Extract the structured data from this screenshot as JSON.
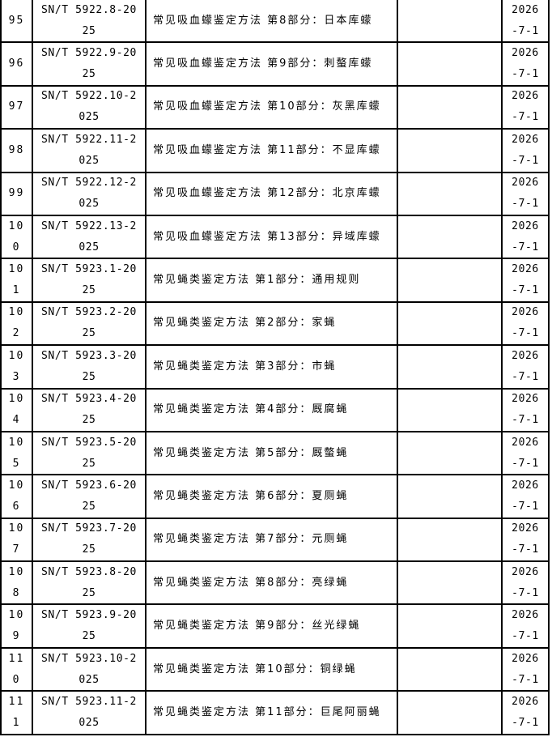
{
  "table": {
    "rows": [
      {
        "no": "95",
        "code": "SN/T 5922.8-2025",
        "name": "常见吸血蠓鉴定方法 第8部分：日本库蠓",
        "blank": "",
        "date": "2026-7-1"
      },
      {
        "no": "96",
        "code": "SN/T 5922.9-2025",
        "name": "常见吸血蠓鉴定方法 第9部分：刺螯库蠓",
        "blank": "",
        "date": "2026-7-1"
      },
      {
        "no": "97",
        "code": "SN/T 5922.10-2025",
        "name": "常见吸血蠓鉴定方法 第10部分：灰黑库蠓",
        "blank": "",
        "date": "2026-7-1"
      },
      {
        "no": "98",
        "code": "SN/T 5922.11-2025",
        "name": "常见吸血蠓鉴定方法 第11部分：不显库蠓",
        "blank": "",
        "date": "2026-7-1"
      },
      {
        "no": "99",
        "code": "SN/T 5922.12-2025",
        "name": "常见吸血蠓鉴定方法 第12部分：北京库蠓",
        "blank": "",
        "date": "2026-7-1"
      },
      {
        "no": "100",
        "code": "SN/T 5922.13-2025",
        "name": "常见吸血蠓鉴定方法 第13部分：异域库蠓",
        "blank": "",
        "date": "2026-7-1"
      },
      {
        "no": "101",
        "code": "SN/T 5923.1-2025",
        "name": "常见蝇类鉴定方法 第1部分：通用规则",
        "blank": "",
        "date": "2026-7-1"
      },
      {
        "no": "102",
        "code": "SN/T 5923.2-2025",
        "name": "常见蝇类鉴定方法 第2部分：家蝇",
        "blank": "",
        "date": "2026-7-1"
      },
      {
        "no": "103",
        "code": "SN/T 5923.3-2025",
        "name": "常见蝇类鉴定方法 第3部分：市蝇",
        "blank": "",
        "date": "2026-7-1"
      },
      {
        "no": "104",
        "code": "SN/T 5923.4-2025",
        "name": "常见蝇类鉴定方法 第4部分：厩腐蝇",
        "blank": "",
        "date": "2026-7-1"
      },
      {
        "no": "105",
        "code": "SN/T 5923.5-2025",
        "name": "常见蝇类鉴定方法 第5部分：厩螫蝇",
        "blank": "",
        "date": "2026-7-1"
      },
      {
        "no": "106",
        "code": "SN/T 5923.6-2025",
        "name": "常见蝇类鉴定方法 第6部分：夏厕蝇",
        "blank": "",
        "date": "2026-7-1"
      },
      {
        "no": "107",
        "code": "SN/T 5923.7-2025",
        "name": "常见蝇类鉴定方法 第7部分：元厕蝇",
        "blank": "",
        "date": "2026-7-1"
      },
      {
        "no": "108",
        "code": "SN/T 5923.8-2025",
        "name": "常见蝇类鉴定方法 第8部分：亮绿蝇",
        "blank": "",
        "date": "2026-7-1"
      },
      {
        "no": "109",
        "code": "SN/T 5923.9-2025",
        "name": "常见蝇类鉴定方法 第9部分：丝光绿蝇",
        "blank": "",
        "date": "2026-7-1"
      },
      {
        "no": "110",
        "code": "SN/T 5923.10-2025",
        "name": "常见蝇类鉴定方法 第10部分：铜绿蝇",
        "blank": "",
        "date": "2026-7-1"
      },
      {
        "no": "111",
        "code": "SN/T 5923.11-2025",
        "name": "常见蝇类鉴定方法 第11部分：巨尾阿丽蝇",
        "blank": "",
        "date": "2026-7-1"
      }
    ]
  }
}
